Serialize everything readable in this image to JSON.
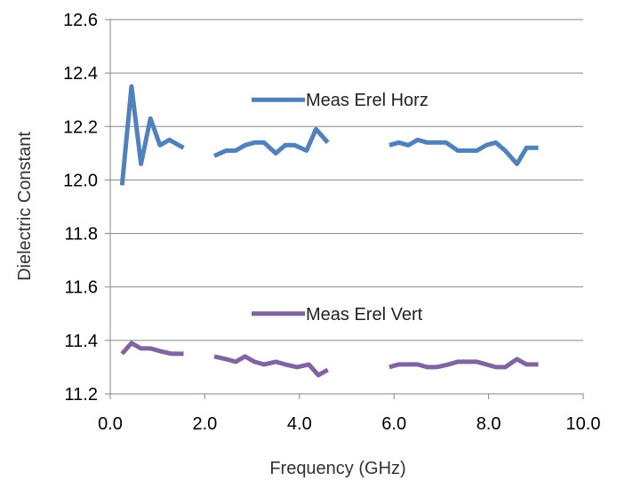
{
  "chart_data": {
    "type": "line",
    "xlabel": "Frequency (GHz)",
    "ylabel": "Dielectric Constant",
    "xlim": [
      0,
      10
    ],
    "ylim": [
      11.2,
      12.6
    ],
    "x_ticks": [
      "0.0",
      "2.0",
      "4.0",
      "6.0",
      "8.0",
      "10.0"
    ],
    "y_ticks": [
      "11.2",
      "11.4",
      "11.6",
      "11.8",
      "12.0",
      "12.2",
      "12.4",
      "12.6"
    ],
    "grid": "horizontal",
    "series": [
      {
        "name": "Meas Erel Horz",
        "color": "#4f81bd",
        "segments": [
          [
            [
              0.25,
              11.98
            ],
            [
              0.45,
              12.35
            ],
            [
              0.65,
              12.06
            ],
            [
              0.85,
              12.23
            ],
            [
              1.05,
              12.13
            ],
            [
              1.25,
              12.15
            ],
            [
              1.55,
              12.12
            ]
          ],
          [
            [
              2.2,
              12.09
            ],
            [
              2.45,
              12.11
            ],
            [
              2.65,
              12.11
            ],
            [
              2.85,
              12.13
            ],
            [
              3.05,
              12.14
            ],
            [
              3.25,
              12.14
            ],
            [
              3.5,
              12.1
            ],
            [
              3.7,
              12.13
            ],
            [
              3.9,
              12.13
            ],
            [
              4.15,
              12.11
            ],
            [
              4.35,
              12.19
            ],
            [
              4.6,
              12.14
            ]
          ]
        ]
      },
      {
        "name": "Meas Erel Vert",
        "color": "#8064a2",
        "segments": [
          [
            [
              0.25,
              11.35
            ],
            [
              0.45,
              11.39
            ],
            [
              0.65,
              11.37
            ],
            [
              0.85,
              11.37
            ],
            [
              1.05,
              11.36
            ],
            [
              1.3,
              11.35
            ],
            [
              1.55,
              11.35
            ]
          ],
          [
            [
              2.2,
              11.34
            ],
            [
              2.45,
              11.33
            ],
            [
              2.65,
              11.32
            ],
            [
              2.85,
              11.34
            ],
            [
              3.05,
              11.32
            ],
            [
              3.25,
              11.31
            ],
            [
              3.5,
              11.32
            ],
            [
              3.7,
              11.31
            ],
            [
              3.95,
              11.3
            ],
            [
              4.2,
              11.31
            ],
            [
              4.4,
              11.27
            ],
            [
              4.6,
              11.29
            ]
          ]
        ]
      }
    ],
    "series_extra": [
      [
        [
          5.9,
          12.13
        ],
        [
          6.1,
          12.14
        ],
        [
          6.3,
          12.13
        ],
        [
          6.5,
          12.15
        ],
        [
          6.7,
          12.14
        ],
        [
          6.9,
          12.14
        ],
        [
          7.1,
          12.14
        ],
        [
          7.35,
          12.11
        ],
        [
          7.55,
          12.11
        ],
        [
          7.75,
          12.11
        ],
        [
          7.95,
          12.13
        ],
        [
          8.15,
          12.14
        ],
        [
          8.35,
          12.11
        ],
        [
          8.6,
          12.06
        ],
        [
          8.8,
          12.12
        ],
        [
          9.05,
          12.12
        ]
      ],
      [
        [
          5.9,
          11.3
        ],
        [
          6.1,
          11.31
        ],
        [
          6.3,
          11.31
        ],
        [
          6.5,
          11.31
        ],
        [
          6.7,
          11.3
        ],
        [
          6.9,
          11.3
        ],
        [
          7.15,
          11.31
        ],
        [
          7.35,
          11.32
        ],
        [
          7.55,
          11.32
        ],
        [
          7.75,
          11.32
        ],
        [
          7.95,
          11.31
        ],
        [
          8.15,
          11.3
        ],
        [
          8.35,
          11.3
        ],
        [
          8.6,
          11.33
        ],
        [
          8.8,
          11.31
        ],
        [
          9.05,
          11.31
        ]
      ]
    ],
    "legend": [
      {
        "name": "Meas Erel Horz",
        "color": "#4f81bd",
        "placement": "upper-middle"
      },
      {
        "name": "Meas Erel Vert",
        "color": "#8064a2",
        "placement": "lower-middle"
      }
    ]
  }
}
